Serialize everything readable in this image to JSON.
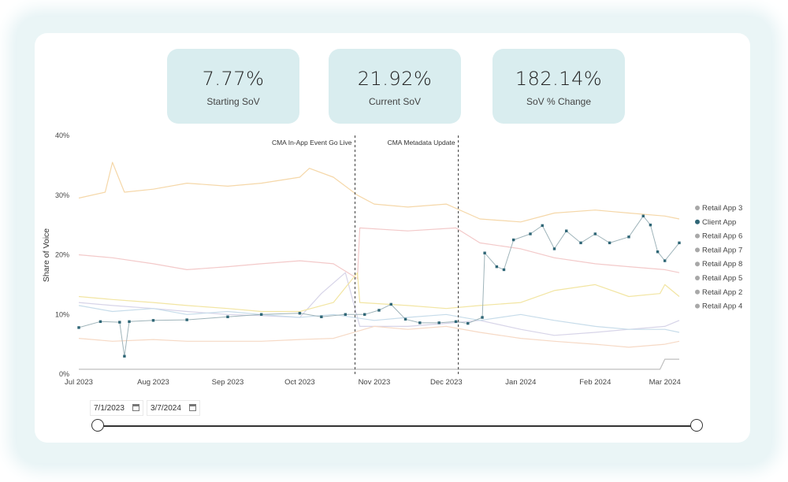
{
  "kpis": [
    {
      "value": "7.77%",
      "label": "Starting SoV"
    },
    {
      "value": "21.92%",
      "label": "Current SoV"
    },
    {
      "value": "182.14%",
      "label": "SoV % Change"
    }
  ],
  "filters": {
    "start_date": "7/1/2023",
    "end_date": "3/7/2024",
    "start_icon": "calendar-icon",
    "end_icon": "calendar-icon"
  },
  "chart_data": {
    "type": "line",
    "title": "",
    "xlabel": "",
    "ylabel": "Share of Voice",
    "x_range": [
      "2023-07-01",
      "2024-03-07"
    ],
    "x_ticks": [
      "Jul 2023",
      "Aug 2023",
      "Sep 2023",
      "Oct 2023",
      "Nov 2023",
      "Dec 2023",
      "Jan 2024",
      "Feb 2024",
      "Mar 2024"
    ],
    "ylim": [
      0,
      40
    ],
    "y_ticks": [
      "0%",
      "10%",
      "20%",
      "30%",
      "40%"
    ],
    "grid": false,
    "legend_position": "right",
    "annotations": [
      {
        "date": "2023-10-24",
        "label": "CMA In-App Event Go Live"
      },
      {
        "date": "2023-12-06",
        "label": "CMA Metadata Update"
      }
    ],
    "series": [
      {
        "name": "Retail App 3",
        "color": "#f5d7a8",
        "points": [
          [
            "2023-07-01",
            29.5
          ],
          [
            "2023-07-12",
            30.5
          ],
          [
            "2023-07-15",
            35.5
          ],
          [
            "2023-07-20",
            30.5
          ],
          [
            "2023-08-01",
            31
          ],
          [
            "2023-08-15",
            32
          ],
          [
            "2023-09-01",
            31.5
          ],
          [
            "2023-09-15",
            32
          ],
          [
            "2023-10-01",
            33
          ],
          [
            "2023-10-05",
            34.5
          ],
          [
            "2023-10-15",
            33
          ],
          [
            "2023-10-25",
            30
          ],
          [
            "2023-11-01",
            28.5
          ],
          [
            "2023-11-15",
            28
          ],
          [
            "2023-12-01",
            28.5
          ],
          [
            "2023-12-15",
            26
          ],
          [
            "2024-01-01",
            25.5
          ],
          [
            "2024-01-15",
            27
          ],
          [
            "2024-02-01",
            27.5
          ],
          [
            "2024-02-15",
            27
          ],
          [
            "2024-03-01",
            26.5
          ],
          [
            "2024-03-07",
            26
          ]
        ]
      },
      {
        "name": "Client App",
        "color": "#2f6676",
        "points": [
          [
            "2023-07-01",
            7.8
          ],
          [
            "2023-07-10",
            8.8
          ],
          [
            "2023-07-18",
            8.7
          ],
          [
            "2023-07-20",
            3.0
          ],
          [
            "2023-07-22",
            8.8
          ],
          [
            "2023-08-01",
            9.0
          ],
          [
            "2023-08-15",
            9.1
          ],
          [
            "2023-09-01",
            9.6
          ],
          [
            "2023-09-15",
            10.0
          ],
          [
            "2023-10-01",
            10.2
          ],
          [
            "2023-10-10",
            9.6
          ],
          [
            "2023-10-20",
            10.0
          ],
          [
            "2023-10-28",
            10.0
          ],
          [
            "2023-11-03",
            10.7
          ],
          [
            "2023-11-08",
            11.7
          ],
          [
            "2023-11-14",
            9.2
          ],
          [
            "2023-11-20",
            8.6
          ],
          [
            "2023-11-28",
            8.6
          ],
          [
            "2023-12-05",
            8.8
          ],
          [
            "2023-12-10",
            8.5
          ],
          [
            "2023-12-16",
            9.5
          ],
          [
            "2023-12-17",
            20.3
          ],
          [
            "2023-12-22",
            18.0
          ],
          [
            "2023-12-25",
            17.5
          ],
          [
            "2023-12-29",
            22.5
          ],
          [
            "2024-01-05",
            23.5
          ],
          [
            "2024-01-10",
            24.9
          ],
          [
            "2024-01-15",
            21.0
          ],
          [
            "2024-01-20",
            24.0
          ],
          [
            "2024-01-26",
            22.0
          ],
          [
            "2024-02-01",
            23.5
          ],
          [
            "2024-02-07",
            22.0
          ],
          [
            "2024-02-15",
            23.0
          ],
          [
            "2024-02-21",
            26.5
          ],
          [
            "2024-02-24",
            25.0
          ],
          [
            "2024-02-27",
            20.5
          ],
          [
            "2024-03-01",
            19.0
          ],
          [
            "2024-03-07",
            22.0
          ]
        ]
      },
      {
        "name": "Retail App 6",
        "color": "#f3c9c9",
        "points": [
          [
            "2023-07-01",
            20
          ],
          [
            "2023-07-15",
            19.5
          ],
          [
            "2023-08-01",
            18.5
          ],
          [
            "2023-08-15",
            17.5
          ],
          [
            "2023-09-01",
            18
          ],
          [
            "2023-09-15",
            18.5
          ],
          [
            "2023-10-01",
            19
          ],
          [
            "2023-10-15",
            18.5
          ],
          [
            "2023-10-25",
            16
          ],
          [
            "2023-10-26",
            24.5
          ],
          [
            "2023-11-15",
            24
          ],
          [
            "2023-12-05",
            24.5
          ],
          [
            "2023-12-15",
            22
          ],
          [
            "2024-01-01",
            21
          ],
          [
            "2024-01-15",
            19.5
          ],
          [
            "2024-02-01",
            18.5
          ],
          [
            "2024-02-15",
            18
          ],
          [
            "2024-03-01",
            17.5
          ],
          [
            "2024-03-07",
            17
          ]
        ]
      },
      {
        "name": "Retail App 7",
        "color": "#d7d4e8",
        "points": [
          [
            "2023-07-01",
            12
          ],
          [
            "2023-07-15",
            11.5
          ],
          [
            "2023-08-01",
            11
          ],
          [
            "2023-08-15",
            10.5
          ],
          [
            "2023-09-01",
            10
          ],
          [
            "2023-09-15",
            9.8
          ],
          [
            "2023-10-01",
            9.5
          ],
          [
            "2023-10-10",
            13.5
          ],
          [
            "2023-10-20",
            17
          ],
          [
            "2023-10-26",
            8
          ],
          [
            "2023-11-15",
            8
          ],
          [
            "2023-12-01",
            8.5
          ],
          [
            "2023-12-15",
            9
          ],
          [
            "2024-01-01",
            7.5
          ],
          [
            "2024-01-15",
            6.5
          ],
          [
            "2024-02-01",
            7
          ],
          [
            "2024-02-15",
            7.5
          ],
          [
            "2024-03-01",
            8
          ],
          [
            "2024-03-07",
            9
          ]
        ]
      },
      {
        "name": "Retail App 8",
        "color": "#f2e5a2",
        "points": [
          [
            "2023-07-01",
            13
          ],
          [
            "2023-07-15",
            12.5
          ],
          [
            "2023-08-01",
            12
          ],
          [
            "2023-08-15",
            11.5
          ],
          [
            "2023-09-01",
            11
          ],
          [
            "2023-09-15",
            10.5
          ],
          [
            "2023-10-01",
            10.5
          ],
          [
            "2023-10-15",
            12
          ],
          [
            "2023-10-25",
            17
          ],
          [
            "2023-10-26",
            12
          ],
          [
            "2023-11-15",
            11.5
          ],
          [
            "2023-12-01",
            11
          ],
          [
            "2023-12-15",
            11.5
          ],
          [
            "2024-01-01",
            12
          ],
          [
            "2024-01-15",
            14
          ],
          [
            "2024-02-01",
            15
          ],
          [
            "2024-02-15",
            13
          ],
          [
            "2024-02-28",
            13.5
          ],
          [
            "2024-03-01",
            15
          ],
          [
            "2024-03-07",
            13
          ]
        ]
      },
      {
        "name": "Retail App 5",
        "color": "#c7dcea",
        "points": [
          [
            "2023-07-01",
            11.5
          ],
          [
            "2023-07-15",
            10.5
          ],
          [
            "2023-08-01",
            11
          ],
          [
            "2023-08-15",
            10
          ],
          [
            "2023-09-01",
            10.5
          ],
          [
            "2023-09-15",
            10
          ],
          [
            "2023-10-01",
            9.5
          ],
          [
            "2023-10-15",
            10
          ],
          [
            "2023-11-01",
            9
          ],
          [
            "2023-11-15",
            9.5
          ],
          [
            "2023-12-01",
            10
          ],
          [
            "2023-12-15",
            9
          ],
          [
            "2024-01-01",
            10
          ],
          [
            "2024-01-15",
            9
          ],
          [
            "2024-02-01",
            8
          ],
          [
            "2024-02-15",
            7.5
          ],
          [
            "2024-03-01",
            7.5
          ],
          [
            "2024-03-07",
            7
          ]
        ]
      },
      {
        "name": "Retail App 2",
        "color": "#f6d9c5",
        "points": [
          [
            "2023-07-01",
            6
          ],
          [
            "2023-07-15",
            5.5
          ],
          [
            "2023-08-01",
            5.8
          ],
          [
            "2023-08-15",
            5.5
          ],
          [
            "2023-09-01",
            5.5
          ],
          [
            "2023-09-15",
            5.5
          ],
          [
            "2023-10-01",
            5.8
          ],
          [
            "2023-10-15",
            6
          ],
          [
            "2023-11-01",
            8
          ],
          [
            "2023-11-15",
            7.5
          ],
          [
            "2023-12-01",
            8
          ],
          [
            "2023-12-15",
            7
          ],
          [
            "2024-01-01",
            6
          ],
          [
            "2024-01-15",
            5.5
          ],
          [
            "2024-02-01",
            5
          ],
          [
            "2024-02-15",
            4.5
          ],
          [
            "2024-03-01",
            5
          ],
          [
            "2024-03-07",
            5.5
          ]
        ]
      },
      {
        "name": "Retail App 4",
        "color": "#bfbfbf",
        "points": [
          [
            "2023-07-01",
            0.8
          ],
          [
            "2023-08-01",
            0.8
          ],
          [
            "2023-09-01",
            0.8
          ],
          [
            "2023-10-01",
            0.8
          ],
          [
            "2023-11-01",
            0.8
          ],
          [
            "2023-12-01",
            0.8
          ],
          [
            "2024-01-01",
            0.8
          ],
          [
            "2024-02-01",
            0.8
          ],
          [
            "2024-02-28",
            0.8
          ],
          [
            "2024-03-01",
            2.5
          ],
          [
            "2024-03-07",
            2.5
          ]
        ]
      }
    ]
  }
}
